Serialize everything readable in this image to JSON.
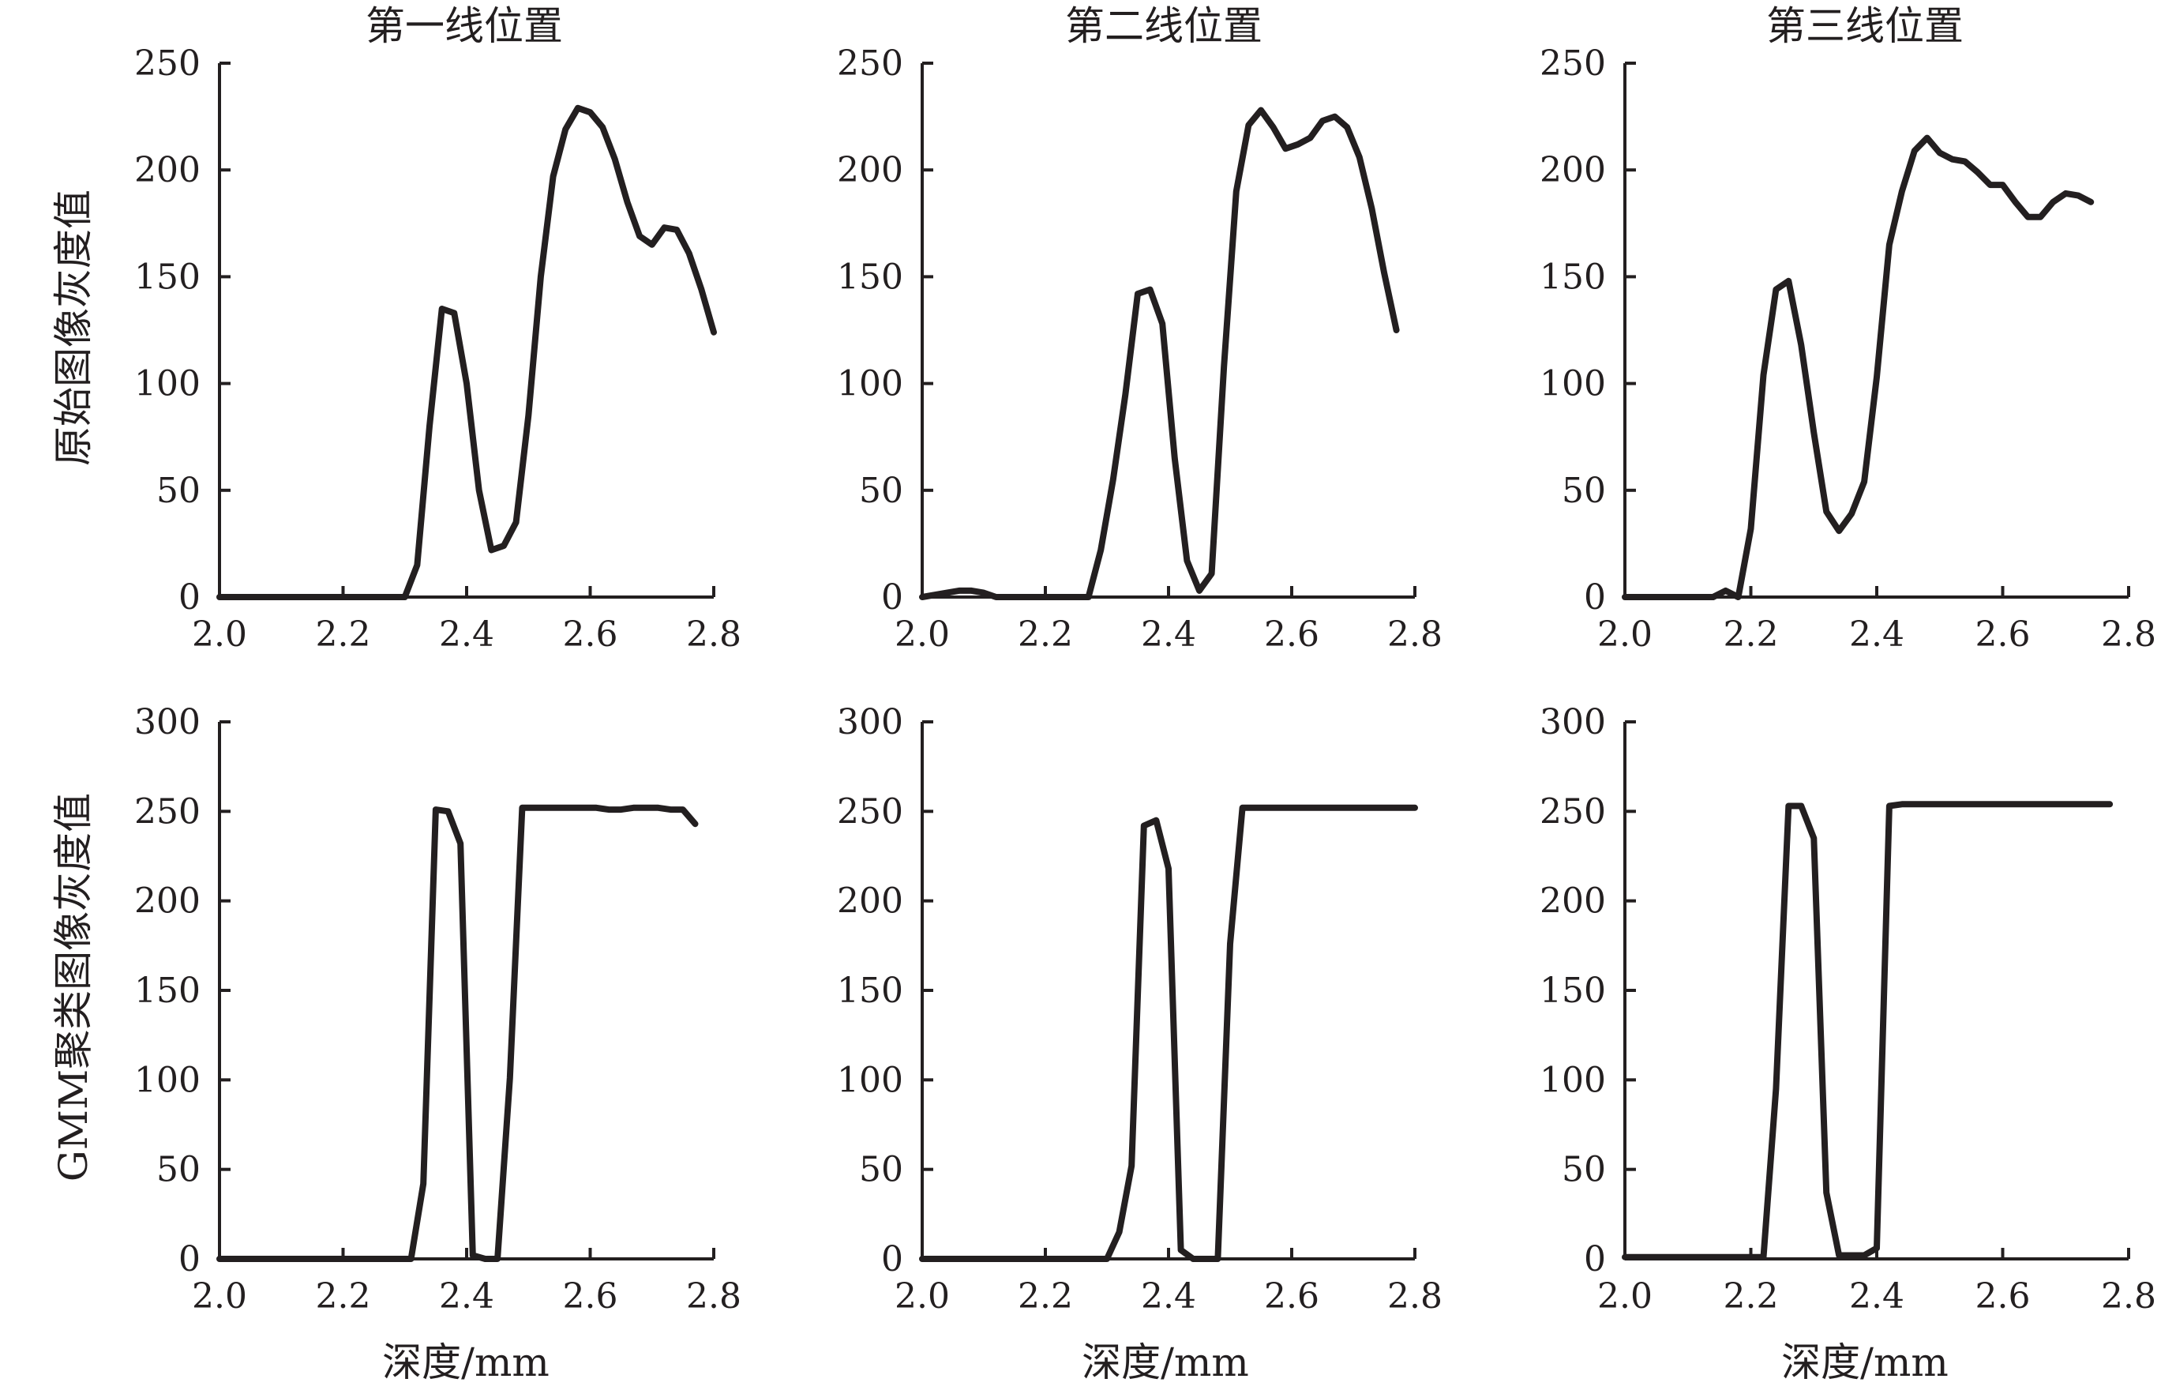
{
  "column_titles": [
    "第一线位置",
    "第二线位置",
    "第三线位置"
  ],
  "row_ylabels": [
    "原始图像灰度值",
    "GMM聚类图像灰度值"
  ],
  "xlabel": "深度/mm",
  "colors": {
    "line": "#231f20",
    "background": "#ffffff"
  },
  "chart_data": [
    {
      "type": "line",
      "panel": "row1-col1",
      "title": "第一线位置",
      "ylabel": "原始图像灰度值",
      "xlabel": "",
      "xlim": [
        2.0,
        2.8
      ],
      "ylim": [
        0,
        250
      ],
      "xticks": [
        "2.0",
        "2.2",
        "2.4",
        "2.6",
        "2.8"
      ],
      "yticks": [
        "0",
        "50",
        "100",
        "150",
        "200",
        "250"
      ],
      "x": [
        2.0,
        2.3,
        2.32,
        2.34,
        2.36,
        2.38,
        2.4,
        2.42,
        2.44,
        2.46,
        2.48,
        2.5,
        2.52,
        2.54,
        2.56,
        2.58,
        2.6,
        2.62,
        2.64,
        2.66,
        2.68,
        2.7,
        2.72,
        2.74,
        2.76,
        2.78,
        2.8
      ],
      "y": [
        0,
        0,
        15,
        80,
        135,
        133,
        100,
        50,
        22,
        24,
        35,
        85,
        150,
        197,
        219,
        229,
        227,
        220,
        205,
        185,
        169,
        165,
        173,
        172,
        161,
        144,
        124
      ]
    },
    {
      "type": "line",
      "panel": "row1-col2",
      "title": "第二线位置",
      "ylabel": "",
      "xlabel": "",
      "xlim": [
        2.0,
        2.8
      ],
      "ylim": [
        0,
        250
      ],
      "xticks": [
        "2.0",
        "2.2",
        "2.4",
        "2.6",
        "2.8"
      ],
      "yticks": [
        "0",
        "50",
        "100",
        "150",
        "200",
        "250"
      ],
      "x": [
        2.0,
        2.04,
        2.06,
        2.08,
        2.1,
        2.12,
        2.27,
        2.29,
        2.31,
        2.33,
        2.35,
        2.37,
        2.39,
        2.41,
        2.43,
        2.45,
        2.47,
        2.49,
        2.51,
        2.53,
        2.55,
        2.57,
        2.59,
        2.61,
        2.63,
        2.65,
        2.67,
        2.69,
        2.71,
        2.73,
        2.75,
        2.77
      ],
      "y": [
        0,
        2,
        3,
        3,
        2,
        0,
        0,
        22,
        55,
        95,
        142,
        144,
        128,
        65,
        17,
        3,
        11,
        108,
        190,
        221,
        228,
        220,
        210,
        212,
        215,
        223,
        225,
        220,
        206,
        182,
        152,
        125
      ]
    },
    {
      "type": "line",
      "panel": "row1-col3",
      "title": "第三线位置",
      "ylabel": "",
      "xlabel": "",
      "xlim": [
        2.0,
        2.8
      ],
      "ylim": [
        0,
        250
      ],
      "xticks": [
        "2.0",
        "2.2",
        "2.4",
        "2.6",
        "2.8"
      ],
      "yticks": [
        "0",
        "50",
        "100",
        "150",
        "200",
        "250"
      ],
      "x": [
        2.0,
        2.02,
        2.14,
        2.16,
        2.18,
        2.2,
        2.22,
        2.24,
        2.26,
        2.28,
        2.3,
        2.32,
        2.34,
        2.36,
        2.38,
        2.4,
        2.42,
        2.44,
        2.46,
        2.48,
        2.5,
        2.52,
        2.54,
        2.56,
        2.58,
        2.6,
        2.62,
        2.64,
        2.66,
        2.68,
        2.7,
        2.72,
        2.74
      ],
      "y": [
        0,
        0,
        0,
        3,
        0,
        32,
        104,
        144,
        148,
        118,
        77,
        40,
        31,
        39,
        54,
        103,
        165,
        190,
        209,
        215,
        208,
        205,
        204,
        199,
        193,
        193,
        185,
        178,
        178,
        185,
        189,
        188,
        185
      ]
    },
    {
      "type": "line",
      "panel": "row2-col1",
      "title": "",
      "ylabel": "GMM聚类图像灰度值",
      "xlabel": "深度/mm",
      "xlim": [
        2.0,
        2.8
      ],
      "ylim": [
        0,
        300
      ],
      "xticks": [
        "2.0",
        "2.2",
        "2.4",
        "2.6",
        "2.8"
      ],
      "yticks": [
        "0",
        "50",
        "100",
        "150",
        "200",
        "250",
        "300"
      ],
      "x": [
        2.0,
        2.31,
        2.33,
        2.35,
        2.37,
        2.39,
        2.41,
        2.43,
        2.45,
        2.47,
        2.49,
        2.51,
        2.55,
        2.61,
        2.63,
        2.65,
        2.67,
        2.69,
        2.71,
        2.73,
        2.75,
        2.77
      ],
      "y": [
        0,
        0,
        42,
        251,
        250,
        232,
        2,
        0,
        0,
        101,
        252,
        252,
        252,
        252,
        251,
        251,
        252,
        252,
        252,
        251,
        251,
        243
      ]
    },
    {
      "type": "line",
      "panel": "row2-col2",
      "title": "",
      "ylabel": "",
      "xlabel": "深度/mm",
      "xlim": [
        2.0,
        2.8
      ],
      "ylim": [
        0,
        300
      ],
      "xticks": [
        "2.0",
        "2.2",
        "2.4",
        "2.6",
        "2.8"
      ],
      "yticks": [
        "0",
        "50",
        "100",
        "150",
        "200",
        "250",
        "300"
      ],
      "x": [
        2.0,
        2.3,
        2.32,
        2.34,
        2.36,
        2.38,
        2.4,
        2.42,
        2.44,
        2.46,
        2.48,
        2.5,
        2.52,
        2.54,
        2.8
      ],
      "y": [
        0,
        0,
        15,
        52,
        242,
        245,
        218,
        5,
        0,
        0,
        0,
        176,
        252,
        252,
        252
      ]
    },
    {
      "type": "line",
      "panel": "row2-col3",
      "title": "",
      "ylabel": "",
      "xlabel": "深度/mm",
      "xlim": [
        2.0,
        2.8
      ],
      "ylim": [
        0,
        300
      ],
      "xticks": [
        "2.0",
        "2.2",
        "2.4",
        "2.6",
        "2.8"
      ],
      "yticks": [
        "0",
        "50",
        "100",
        "150",
        "200",
        "250",
        "300"
      ],
      "x": [
        2.0,
        2.22,
        2.24,
        2.26,
        2.28,
        2.3,
        2.32,
        2.34,
        2.36,
        2.38,
        2.4,
        2.42,
        2.44,
        2.6,
        2.77
      ],
      "y": [
        1,
        1,
        95,
        253,
        253,
        235,
        37,
        2,
        2,
        2,
        6,
        253,
        254,
        254,
        254
      ]
    }
  ]
}
